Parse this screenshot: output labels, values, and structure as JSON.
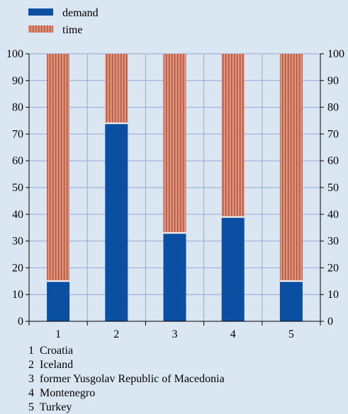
{
  "chart_data": {
    "type": "bar",
    "stacked": true,
    "categories": [
      "1",
      "2",
      "3",
      "4",
      "5"
    ],
    "series": [
      {
        "name": "demand",
        "values": [
          15,
          74,
          33,
          39,
          15
        ],
        "color": "#0b4fa3"
      },
      {
        "name": "time",
        "values": [
          85,
          26,
          67,
          61,
          85
        ],
        "color": "#d8957b",
        "stripe_color": "#a9402e"
      }
    ],
    "ylim": [
      0,
      100
    ],
    "yticks": [
      "0",
      "10",
      "20",
      "30",
      "40",
      "50",
      "60",
      "70",
      "80",
      "90",
      "100"
    ],
    "y_axis_sides": "both",
    "grid": true,
    "grid_color": "#9aa6d9",
    "legend_position": "top-left",
    "xlabel": "",
    "ylabel": "",
    "category_notes": [
      "1  Croatia",
      "2  Iceland",
      "3  former Yusgolav Republic of Macedonia",
      "4  Montenegro",
      "5  Turkey"
    ]
  }
}
